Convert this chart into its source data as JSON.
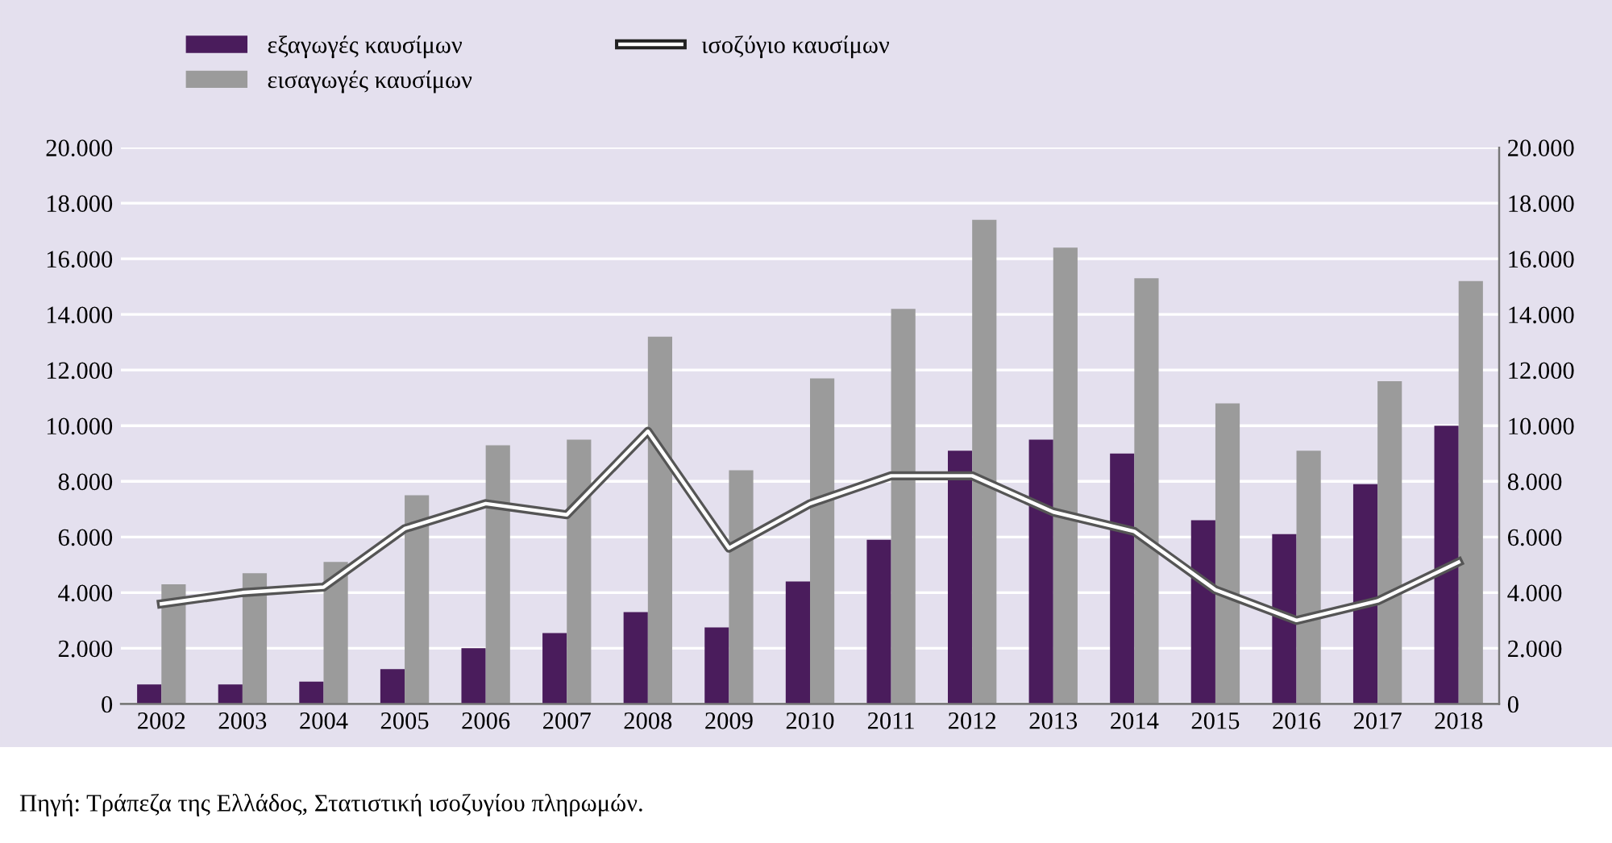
{
  "chart_data": {
    "type": "bar",
    "categories": [
      "2002",
      "2003",
      "2004",
      "2005",
      "2006",
      "2007",
      "2008",
      "2009",
      "2010",
      "2011",
      "2012",
      "2013",
      "2014",
      "2015",
      "2016",
      "2017",
      "2018"
    ],
    "series": [
      {
        "name": "εξαγωγές καυσίμων",
        "color": "#4a1c5c",
        "values": [
          700,
          700,
          800,
          1250,
          2000,
          2550,
          3300,
          2750,
          4400,
          5900,
          9100,
          9500,
          9000,
          6600,
          6100,
          7900,
          10000
        ]
      },
      {
        "name": "εισαγωγές καυσίμων",
        "color": "#9b9b9b",
        "values": [
          4300,
          4700,
          5100,
          7500,
          9300,
          9500,
          13200,
          8400,
          11700,
          14200,
          17400,
          16400,
          15300,
          10800,
          9100,
          11600,
          15200
        ]
      },
      {
        "name": "ισοζύγιο καυσίμων",
        "type": "line",
        "color": "#ffffff",
        "values": [
          3600,
          4000,
          4200,
          6300,
          7200,
          6800,
          9800,
          5600,
          7200,
          8200,
          8200,
          6900,
          6200,
          4100,
          3000,
          3700,
          5100
        ]
      }
    ],
    "ylim": [
      0,
      20000
    ],
    "yticks": [
      0,
      {
        "value": 2000,
        "label": "2.000"
      },
      {
        "value": 4000,
        "label": "4.000"
      },
      {
        "value": 6000,
        "label": "6.000"
      },
      {
        "value": 8000,
        "label": "8.000"
      },
      {
        "value": 10000,
        "label": "10.000"
      },
      {
        "value": 12000,
        "label": "12.000"
      },
      {
        "value": 14000,
        "label": "14.000"
      },
      {
        "value": 16000,
        "label": "16.000"
      },
      {
        "value": 18000,
        "label": "18.000"
      },
      {
        "value": 20000,
        "label": "20.000"
      }
    ],
    "y2lim": [
      0,
      20000
    ],
    "y2ticks": [
      0,
      {
        "value": 2000,
        "label": "2.000"
      },
      {
        "value": 4000,
        "label": "4.000"
      },
      {
        "value": 6000,
        "label": "6.000"
      },
      {
        "value": 8000,
        "label": "8.000"
      },
      {
        "value": 10000,
        "label": "10.000"
      },
      {
        "value": 12000,
        "label": "12.000"
      },
      {
        "value": 14000,
        "label": "14.000"
      },
      {
        "value": 16000,
        "label": "16.000"
      },
      {
        "value": 18000,
        "label": "18.000"
      },
      {
        "value": 20000,
        "label": "20.000"
      }
    ],
    "grid": true,
    "legend": "top left",
    "annotations": [
      "Πηγή: Τράπεζα της Ελλάδος, Στατιστική ισοζυγίου πληρωμών."
    ]
  }
}
